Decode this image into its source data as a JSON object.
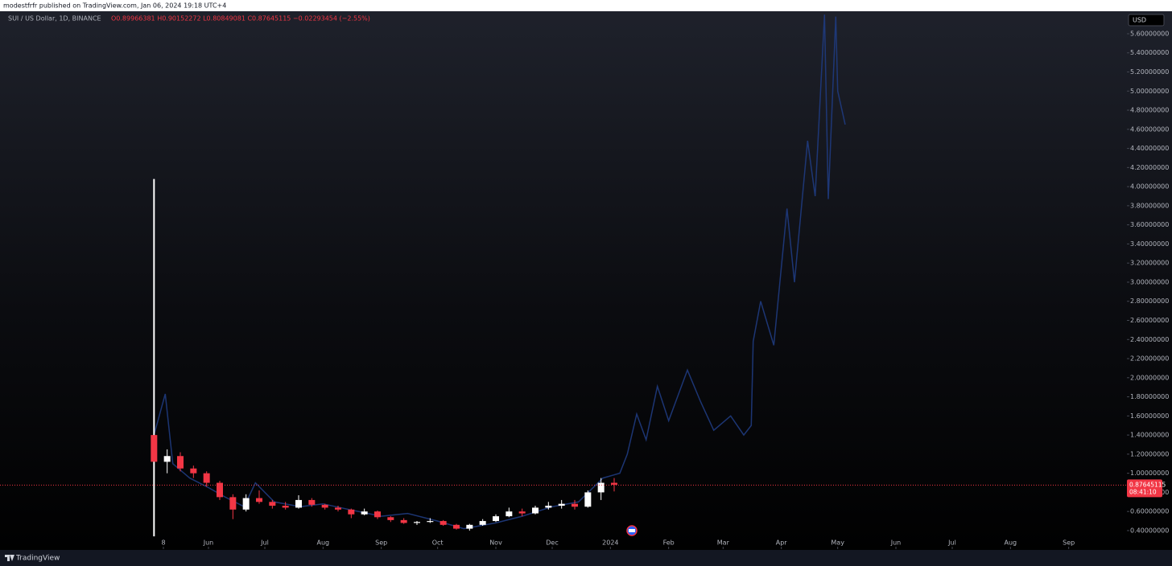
{
  "publisher": "modestfrfr published on TradingView.com, Jan 06, 2024 19:18 UTC+4",
  "brand": "TradingView",
  "chart_data": {
    "type": "candlestick",
    "title": "SUI / US Dollar, 1D, BINANCE",
    "ohlc_label": "O0.89966381 H0.90152272 L0.80849081 C0.87645115 −0.02293454 (−2.55%)",
    "currency": "USD",
    "current_price": 0.87645115,
    "price_label": "0.87645115",
    "countdown": "08:41:10",
    "up_color": "#ffffff",
    "down_color": "#f23645",
    "price_line_color": "#f23645",
    "candles": {
      "x": [
        "2023-05-03",
        "2023-05-10",
        "2023-05-17",
        "2023-05-24",
        "2023-05-31",
        "2023-06-07",
        "2023-06-14",
        "2023-06-21",
        "2023-06-28",
        "2023-07-05",
        "2023-07-12",
        "2023-07-19",
        "2023-07-26",
        "2023-08-02",
        "2023-08-09",
        "2023-08-16",
        "2023-08-23",
        "2023-08-30",
        "2023-09-06",
        "2023-09-13",
        "2023-09-20",
        "2023-09-27",
        "2023-10-04",
        "2023-10-11",
        "2023-10-18",
        "2023-10-25",
        "2023-11-01",
        "2023-11-08",
        "2023-11-15",
        "2023-11-22",
        "2023-11-29",
        "2023-12-06",
        "2023-12-13",
        "2023-12-20",
        "2023-12-27",
        "2024-01-03"
      ],
      "open": [
        1.4,
        1.12,
        1.18,
        1.05,
        1.0,
        0.9,
        0.75,
        0.62,
        0.74,
        0.7,
        0.66,
        0.64,
        0.72,
        0.67,
        0.64,
        0.62,
        0.57,
        0.6,
        0.54,
        0.51,
        0.48,
        0.49,
        0.5,
        0.46,
        0.42,
        0.46,
        0.5,
        0.55,
        0.6,
        0.58,
        0.64,
        0.66,
        0.68,
        0.65,
        0.8,
        0.9
      ],
      "high": [
        4.08,
        1.25,
        1.22,
        1.08,
        1.02,
        0.92,
        0.78,
        0.78,
        0.82,
        0.72,
        0.7,
        0.77,
        0.74,
        0.68,
        0.66,
        0.63,
        0.63,
        0.61,
        0.55,
        0.53,
        0.5,
        0.53,
        0.51,
        0.47,
        0.47,
        0.52,
        0.57,
        0.64,
        0.63,
        0.66,
        0.7,
        0.72,
        0.72,
        0.82,
        0.95,
        0.95
      ],
      "low": [
        0.34,
        1.0,
        1.02,
        0.95,
        0.86,
        0.72,
        0.52,
        0.6,
        0.68,
        0.63,
        0.62,
        0.63,
        0.65,
        0.62,
        0.6,
        0.53,
        0.56,
        0.52,
        0.49,
        0.47,
        0.46,
        0.48,
        0.45,
        0.41,
        0.4,
        0.45,
        0.49,
        0.54,
        0.55,
        0.57,
        0.62,
        0.63,
        0.62,
        0.64,
        0.72,
        0.81
      ],
      "close": [
        1.12,
        1.18,
        1.05,
        1.0,
        0.9,
        0.75,
        0.62,
        0.74,
        0.7,
        0.66,
        0.64,
        0.72,
        0.67,
        0.64,
        0.62,
        0.57,
        0.6,
        0.54,
        0.51,
        0.48,
        0.49,
        0.5,
        0.46,
        0.42,
        0.46,
        0.5,
        0.55,
        0.6,
        0.58,
        0.64,
        0.66,
        0.68,
        0.65,
        0.8,
        0.9,
        0.88
      ]
    },
    "projection": {
      "color": "#1f3b80",
      "x": [
        "2023-05-03",
        "2023-05-09",
        "2023-05-13",
        "2023-05-22",
        "2023-06-01",
        "2023-06-10",
        "2023-06-20",
        "2023-06-26",
        "2023-07-06",
        "2023-07-20",
        "2023-08-01",
        "2023-08-15",
        "2023-09-01",
        "2023-09-15",
        "2023-10-01",
        "2023-10-15",
        "2023-11-01",
        "2023-11-15",
        "2023-12-01",
        "2023-12-15",
        "2023-12-28",
        "2024-01-06",
        "2024-01-10",
        "2024-01-15",
        "2024-01-20",
        "2024-01-26",
        "2024-02-01",
        "2024-02-11",
        "2024-02-18",
        "2024-02-25",
        "2024-03-05",
        "2024-03-12",
        "2024-03-16",
        "2024-03-17",
        "2024-03-21",
        "2024-03-28",
        "2024-04-04",
        "2024-04-08",
        "2024-04-15",
        "2024-04-19",
        "2024-04-24",
        "2024-04-26",
        "2024-04-30",
        "2024-05-01",
        "2024-05-05"
      ],
      "values": [
        1.4,
        1.83,
        1.1,
        0.95,
        0.85,
        0.75,
        0.65,
        0.9,
        0.7,
        0.65,
        0.68,
        0.62,
        0.55,
        0.58,
        0.5,
        0.42,
        0.48,
        0.55,
        0.65,
        0.7,
        0.95,
        1.0,
        1.2,
        1.62,
        1.35,
        1.91,
        1.55,
        2.08,
        1.75,
        1.45,
        1.6,
        1.4,
        1.5,
        2.38,
        2.8,
        2.34,
        3.77,
        3.0,
        4.48,
        3.9,
        5.8,
        3.87,
        5.78,
        5.0,
        4.65
      ]
    },
    "xlim": [
      "2023-02-10",
      "2024-10-02"
    ],
    "xticks": [
      {
        "value": "2023-05-08",
        "label": "8"
      },
      {
        "value": "2023-06-01",
        "label": "Jun"
      },
      {
        "value": "2023-07-01",
        "label": "Jul"
      },
      {
        "value": "2023-08-01",
        "label": "Aug"
      },
      {
        "value": "2023-09-01",
        "label": "Sep"
      },
      {
        "value": "2023-10-01",
        "label": "Oct"
      },
      {
        "value": "2023-11-01",
        "label": "Nov"
      },
      {
        "value": "2023-12-01",
        "label": "Dec"
      },
      {
        "value": "2024-01-01",
        "label": "2024"
      },
      {
        "value": "2024-02-01",
        "label": "Feb"
      },
      {
        "value": "2024-03-01",
        "label": "Mar"
      },
      {
        "value": "2024-04-01",
        "label": "Apr"
      },
      {
        "value": "2024-05-01",
        "label": "May"
      },
      {
        "value": "2024-06-01",
        "label": "Jun"
      },
      {
        "value": "2024-07-01",
        "label": "Jul"
      },
      {
        "value": "2024-08-01",
        "label": "Aug"
      },
      {
        "value": "2024-09-01",
        "label": "Sep"
      }
    ],
    "ylim": [
      0.206,
      5.827
    ],
    "yticks": [
      {
        "value": 0.4,
        "label": "0.40000000"
      },
      {
        "value": 0.6,
        "label": "0.60000000"
      },
      {
        "value": 0.8,
        "label": "0.80000000"
      },
      {
        "value": 1.0,
        "label": "1.00000000"
      },
      {
        "value": 1.2,
        "label": "1.20000000"
      },
      {
        "value": 1.4,
        "label": "1.40000000"
      },
      {
        "value": 1.6,
        "label": "1.60000000"
      },
      {
        "value": 1.8,
        "label": "1.80000000"
      },
      {
        "value": 2.0,
        "label": "2.00000000"
      },
      {
        "value": 2.2,
        "label": "2.20000000"
      },
      {
        "value": 2.4,
        "label": "2.40000000"
      },
      {
        "value": 2.6,
        "label": "2.60000000"
      },
      {
        "value": 2.8,
        "label": "2.80000000"
      },
      {
        "value": 3.0,
        "label": "3.00000000"
      },
      {
        "value": 3.2,
        "label": "3.20000000"
      },
      {
        "value": 3.4,
        "label": "3.40000000"
      },
      {
        "value": 3.6,
        "label": "3.60000000"
      },
      {
        "value": 3.8,
        "label": "3.80000000"
      },
      {
        "value": 4.0,
        "label": "4.00000000"
      },
      {
        "value": 4.2,
        "label": "4.20000000"
      },
      {
        "value": 4.4,
        "label": "4.40000000"
      },
      {
        "value": 4.6,
        "label": "4.60000000"
      },
      {
        "value": 4.8,
        "label": "4.80000000"
      },
      {
        "value": 5.0,
        "label": "5.00000000"
      },
      {
        "value": 5.2,
        "label": "5.20000000"
      },
      {
        "value": 5.4,
        "label": "5.40000000"
      },
      {
        "value": 5.6,
        "label": "5.60000000"
      }
    ]
  }
}
